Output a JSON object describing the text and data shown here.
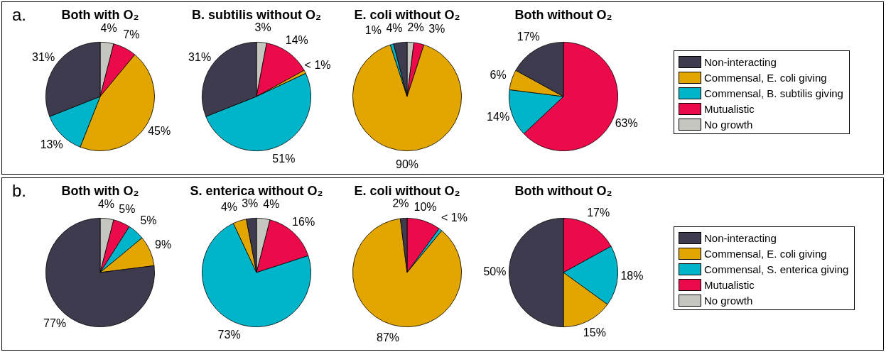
{
  "chart_data": [
    {
      "type": "pie",
      "title": "Both with O₂",
      "annotations": [
        "a."
      ],
      "categories": [
        null,
        null,
        null,
        null,
        null
      ],
      "values": [
        31,
        13,
        45,
        7,
        4
      ],
      "colors": [
        "#3d3b4d",
        "#00b5c9",
        "#e3a600",
        "#ec0a4a",
        "#c4c6bf"
      ],
      "value_labels": [
        "31%",
        "13%",
        "45%",
        "7%",
        "4%"
      ]
    },
    {
      "type": "pie",
      "title": "B. subtilis without O₂",
      "categories": [
        null,
        null,
        null,
        null,
        null
      ],
      "values": [
        31,
        51,
        1,
        14,
        3
      ],
      "colors": [
        "#3d3b4d",
        "#00b5c9",
        "#e3a600",
        "#ec0a4a",
        "#c4c6bf"
      ],
      "value_labels": [
        "31%",
        "51%",
        "< 1%",
        "14%",
        "3%"
      ]
    },
    {
      "type": "pie",
      "title": "E. coli without O₂",
      "categories": [
        null,
        null,
        null,
        null,
        null
      ],
      "values": [
        4,
        1,
        90,
        3,
        2
      ],
      "colors": [
        "#3d3b4d",
        "#00b5c9",
        "#e3a600",
        "#ec0a4a",
        "#c4c6bf"
      ],
      "value_labels": [
        "4%",
        "1%",
        "90%",
        "3%",
        "2%"
      ]
    },
    {
      "type": "pie",
      "title": "Both without O₂",
      "legend": "right",
      "categories": [
        "Non-interacting",
        "Commensal, E. coli giving",
        "Commensal, B. subtilis giving",
        "Mutualistic",
        "No growth"
      ],
      "values": [
        17,
        6,
        14,
        63,
        0
      ],
      "colors": [
        "#3d3b4d",
        "#e3a600",
        "#00b5c9",
        "#ec0a4a",
        "#c4c6bf"
      ],
      "value_labels": [
        "17%",
        "6%",
        "14%",
        "63%",
        null
      ]
    },
    {
      "type": "pie",
      "title": "Both with O₂",
      "annotations": [
        "b."
      ],
      "categories": [
        null,
        null,
        null,
        null,
        null
      ],
      "values": [
        77,
        9,
        5,
        5,
        4
      ],
      "colors": [
        "#3d3b4d",
        "#e3a600",
        "#00b5c9",
        "#ec0a4a",
        "#c4c6bf"
      ],
      "value_labels": [
        "77%",
        "9%",
        "5%",
        "5%",
        "4%"
      ]
    },
    {
      "type": "pie",
      "title": "S. enterica without O₂",
      "categories": [
        null,
        null,
        null,
        null,
        null
      ],
      "values": [
        3,
        4,
        73,
        16,
        4
      ],
      "colors": [
        "#3d3b4d",
        "#e3a600",
        "#00b5c9",
        "#ec0a4a",
        "#c4c6bf"
      ],
      "value_labels": [
        "3%",
        "4%",
        "73%",
        "16%",
        "4%"
      ]
    },
    {
      "type": "pie",
      "title": "E. coli without O₂",
      "categories": [
        null,
        null,
        null,
        null,
        null
      ],
      "values": [
        2,
        87,
        1,
        10,
        0
      ],
      "colors": [
        "#3d3b4d",
        "#e3a600",
        "#00b5c9",
        "#ec0a4a",
        "#c4c6bf"
      ],
      "value_labels": [
        "2%",
        "87%",
        "< 1%",
        "10%",
        null
      ]
    },
    {
      "type": "pie",
      "title": "Both without O₂",
      "legend": "right",
      "categories": [
        "Non-interacting",
        "Commensal, E. coli giving",
        "Commensal, S. enterica giving",
        "Mutualistic",
        "No growth"
      ],
      "values": [
        50,
        15,
        18,
        17,
        0
      ],
      "colors": [
        "#3d3b4d",
        "#e3a600",
        "#00b5c9",
        "#ec0a4a",
        "#c4c6bf"
      ],
      "value_labels": [
        "50%",
        "15%",
        "18%",
        "17%",
        null
      ]
    }
  ]
}
